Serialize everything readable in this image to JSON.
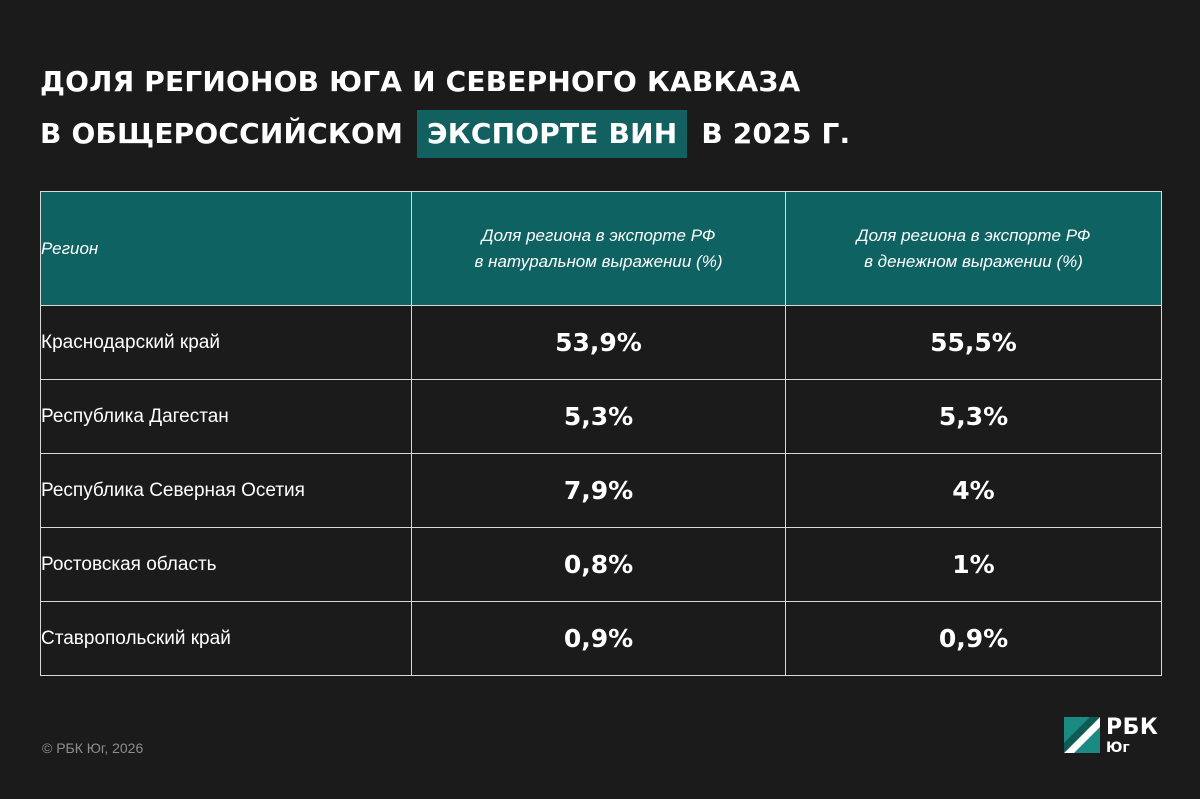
{
  "title": {
    "line1": "Доля регионов Юга и Северного Кавказа",
    "line2_before": "в общероссийском",
    "line2_highlight": "экспорте вин",
    "line2_after": "в 2025 г."
  },
  "chart_data": {
    "type": "table",
    "columns": [
      "Регион",
      "Доля региона в экспорте РФ\nв натуральном выражении (%)",
      "Доля региона в экспорте РФ\nв денежном выражении (%)"
    ],
    "rows": [
      {
        "region": "Краснодарский край",
        "natural": "53,9%",
        "monetary": "55,5%"
      },
      {
        "region": "Республика Дагестан",
        "natural": "5,3%",
        "monetary": "5,3%"
      },
      {
        "region": "Республика Северная Осетия",
        "natural": "7,9%",
        "monetary": "4%"
      },
      {
        "region": "Ростовская область",
        "natural": "0,8%",
        "monetary": "1%"
      },
      {
        "region": "Ставропольский край",
        "natural": "0,9%",
        "monetary": "0,9%"
      }
    ]
  },
  "header": {
    "region": "Регион",
    "natural_l1": "Доля региона в экспорте РФ",
    "natural_l2": "в натуральном выражении (%)",
    "monetary_l1": "Доля региона в экспорте РФ",
    "monetary_l2": "в денежном выражении (%)"
  },
  "footer": {
    "copyright": "© РБК Юг, 2026",
    "logo_main": "РБК",
    "logo_sub": "Юг"
  },
  "colors": {
    "background": "#1b1b1b",
    "accent_teal": "#0f6262",
    "logo_teal": "#1a8a82"
  }
}
